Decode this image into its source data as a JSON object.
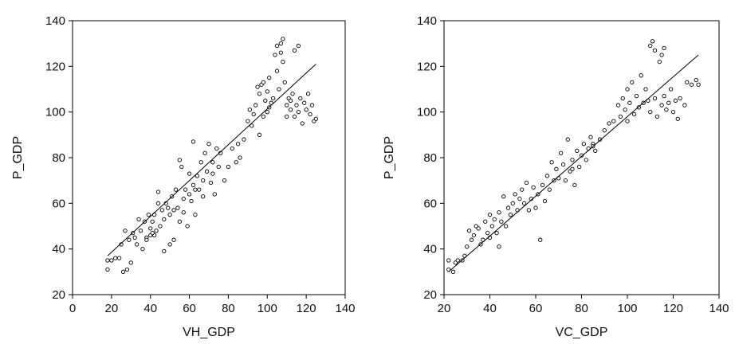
{
  "chart_data": [
    {
      "type": "scatter",
      "title": "",
      "xlabel": "VH_GDP",
      "ylabel": "P_GDP",
      "xlim": [
        0,
        140
      ],
      "ylim": [
        20,
        140
      ],
      "xticks": [
        0,
        20,
        40,
        60,
        80,
        100,
        120,
        140
      ],
      "yticks": [
        20,
        40,
        60,
        80,
        100,
        120,
        140
      ],
      "grid": false,
      "fit_line": {
        "x": [
          18,
          125
        ],
        "y": [
          37,
          121
        ]
      },
      "points": [
        [
          18,
          35
        ],
        [
          18,
          31
        ],
        [
          20,
          35
        ],
        [
          22,
          36
        ],
        [
          24,
          36
        ],
        [
          25,
          42
        ],
        [
          26,
          30
        ],
        [
          27,
          48
        ],
        [
          28,
          31
        ],
        [
          29,
          44
        ],
        [
          30,
          34
        ],
        [
          31,
          47
        ],
        [
          32,
          45
        ],
        [
          33,
          42
        ],
        [
          34,
          53
        ],
        [
          35,
          48
        ],
        [
          36,
          40
        ],
        [
          37,
          52
        ],
        [
          38,
          45
        ],
        [
          39,
          55
        ],
        [
          40,
          46
        ],
        [
          40,
          49
        ],
        [
          41,
          52
        ],
        [
          42,
          46
        ],
        [
          42,
          55
        ],
        [
          43,
          48
        ],
        [
          44,
          60
        ],
        [
          44,
          65
        ],
        [
          45,
          50
        ],
        [
          46,
          57
        ],
        [
          47,
          53
        ],
        [
          47,
          39
        ],
        [
          48,
          60
        ],
        [
          49,
          58
        ],
        [
          50,
          42
        ],
        [
          50,
          55
        ],
        [
          51,
          63
        ],
        [
          52,
          44
        ],
        [
          52,
          57
        ],
        [
          53,
          66
        ],
        [
          54,
          58
        ],
        [
          55,
          79
        ],
        [
          55,
          52
        ],
        [
          56,
          76
        ],
        [
          57,
          56
        ],
        [
          58,
          66
        ],
        [
          59,
          50
        ],
        [
          60,
          73
        ],
        [
          60,
          64
        ],
        [
          61,
          61
        ],
        [
          62,
          68
        ],
        [
          62,
          87
        ],
        [
          63,
          55
        ],
        [
          64,
          72
        ],
        [
          65,
          66
        ],
        [
          66,
          78
        ],
        [
          67,
          63
        ],
        [
          68,
          82
        ],
        [
          69,
          74
        ],
        [
          70,
          86
        ],
        [
          71,
          69
        ],
        [
          72,
          78
        ],
        [
          73,
          64
        ],
        [
          74,
          84
        ],
        [
          75,
          76
        ],
        [
          76,
          82
        ],
        [
          78,
          70
        ],
        [
          80,
          76
        ],
        [
          82,
          84
        ],
        [
          84,
          78
        ],
        [
          85,
          86
        ],
        [
          86,
          80
        ],
        [
          88,
          88
        ],
        [
          90,
          96
        ],
        [
          91,
          101
        ],
        [
          92,
          94
        ],
        [
          93,
          99
        ],
        [
          94,
          103
        ],
        [
          95,
          111
        ],
        [
          96,
          108
        ],
        [
          97,
          112
        ],
        [
          98,
          98
        ],
        [
          98,
          113
        ],
        [
          99,
          105
        ],
        [
          100,
          100
        ],
        [
          100,
          109
        ],
        [
          101,
          115
        ],
        [
          102,
          104
        ],
        [
          103,
          106
        ],
        [
          104,
          125
        ],
        [
          105,
          118
        ],
        [
          105,
          129
        ],
        [
          106,
          110
        ],
        [
          107,
          130
        ],
        [
          107,
          126
        ],
        [
          108,
          132
        ],
        [
          108,
          122
        ],
        [
          109,
          113
        ],
        [
          110,
          98
        ],
        [
          110,
          103
        ],
        [
          111,
          106
        ],
        [
          112,
          101
        ],
        [
          113,
          108
        ],
        [
          114,
          127
        ],
        [
          114,
          98
        ],
        [
          115,
          103
        ],
        [
          116,
          129
        ],
        [
          116,
          100
        ],
        [
          117,
          106
        ],
        [
          118,
          95
        ],
        [
          119,
          104
        ],
        [
          120,
          101
        ],
        [
          121,
          108
        ],
        [
          122,
          99
        ],
        [
          123,
          103
        ],
        [
          124,
          96
        ],
        [
          125,
          97
        ],
        [
          38,
          44
        ],
        [
          41,
          47
        ],
        [
          57,
          62
        ],
        [
          63,
          66
        ],
        [
          67,
          70
        ],
        [
          72,
          73
        ],
        [
          96,
          90
        ],
        [
          101,
          102
        ],
        [
          112,
          105
        ]
      ]
    },
    {
      "type": "scatter",
      "title": "",
      "xlabel": "VC_GDP",
      "ylabel": "P_GDP",
      "xlim": [
        20,
        140
      ],
      "ylim": [
        20,
        140
      ],
      "xticks": [
        20,
        40,
        60,
        80,
        100,
        120,
        140
      ],
      "yticks": [
        20,
        40,
        60,
        80,
        100,
        120,
        140
      ],
      "grid": false,
      "fit_line": {
        "x": [
          22,
          131
        ],
        "y": [
          30,
          125
        ]
      },
      "points": [
        [
          22,
          35
        ],
        [
          22,
          31
        ],
        [
          24,
          30
        ],
        [
          25,
          34
        ],
        [
          26,
          35
        ],
        [
          28,
          35
        ],
        [
          29,
          37
        ],
        [
          30,
          41
        ],
        [
          31,
          48
        ],
        [
          32,
          44
        ],
        [
          33,
          46
        ],
        [
          34,
          50
        ],
        [
          35,
          49
        ],
        [
          36,
          42
        ],
        [
          37,
          44
        ],
        [
          38,
          52
        ],
        [
          39,
          47
        ],
        [
          40,
          45
        ],
        [
          40,
          55
        ],
        [
          41,
          50
        ],
        [
          42,
          53
        ],
        [
          43,
          47
        ],
        [
          44,
          56
        ],
        [
          44,
          41
        ],
        [
          45,
          52
        ],
        [
          46,
          63
        ],
        [
          47,
          50
        ],
        [
          48,
          58
        ],
        [
          49,
          55
        ],
        [
          50,
          60
        ],
        [
          51,
          64
        ],
        [
          52,
          57
        ],
        [
          53,
          62
        ],
        [
          54,
          66
        ],
        [
          55,
          60
        ],
        [
          56,
          69
        ],
        [
          57,
          57
        ],
        [
          58,
          62
        ],
        [
          59,
          67
        ],
        [
          60,
          58
        ],
        [
          61,
          64
        ],
        [
          62,
          44
        ],
        [
          63,
          68
        ],
        [
          64,
          61
        ],
        [
          65,
          72
        ],
        [
          66,
          66
        ],
        [
          67,
          78
        ],
        [
          68,
          70
        ],
        [
          69,
          75
        ],
        [
          70,
          71
        ],
        [
          71,
          82
        ],
        [
          72,
          77
        ],
        [
          73,
          70
        ],
        [
          74,
          88
        ],
        [
          75,
          74
        ],
        [
          76,
          79
        ],
        [
          77,
          68
        ],
        [
          78,
          83
        ],
        [
          79,
          76
        ],
        [
          80,
          81
        ],
        [
          81,
          86
        ],
        [
          82,
          79
        ],
        [
          83,
          84
        ],
        [
          84,
          89
        ],
        [
          85,
          86
        ],
        [
          86,
          83
        ],
        [
          88,
          88
        ],
        [
          90,
          92
        ],
        [
          92,
          95
        ],
        [
          94,
          96
        ],
        [
          96,
          103
        ],
        [
          97,
          98
        ],
        [
          98,
          106
        ],
        [
          99,
          101
        ],
        [
          100,
          96
        ],
        [
          100,
          110
        ],
        [
          101,
          104
        ],
        [
          102,
          113
        ],
        [
          103,
          99
        ],
        [
          104,
          107
        ],
        [
          105,
          102
        ],
        [
          106,
          116
        ],
        [
          107,
          104
        ],
        [
          108,
          110
        ],
        [
          109,
          105
        ],
        [
          110,
          129
        ],
        [
          110,
          100
        ],
        [
          111,
          131
        ],
        [
          112,
          106
        ],
        [
          113,
          98
        ],
        [
          114,
          122
        ],
        [
          115,
          103
        ],
        [
          116,
          128
        ],
        [
          116,
          107
        ],
        [
          117,
          101
        ],
        [
          118,
          104
        ],
        [
          119,
          110
        ],
        [
          120,
          100
        ],
        [
          121,
          105
        ],
        [
          122,
          97
        ],
        [
          123,
          106
        ],
        [
          125,
          103
        ],
        [
          126,
          113
        ],
        [
          128,
          112
        ],
        [
          130,
          114
        ],
        [
          131,
          112
        ],
        [
          112,
          127
        ],
        [
          115,
          125
        ],
        [
          85,
          85
        ],
        [
          76,
          75
        ]
      ]
    }
  ]
}
